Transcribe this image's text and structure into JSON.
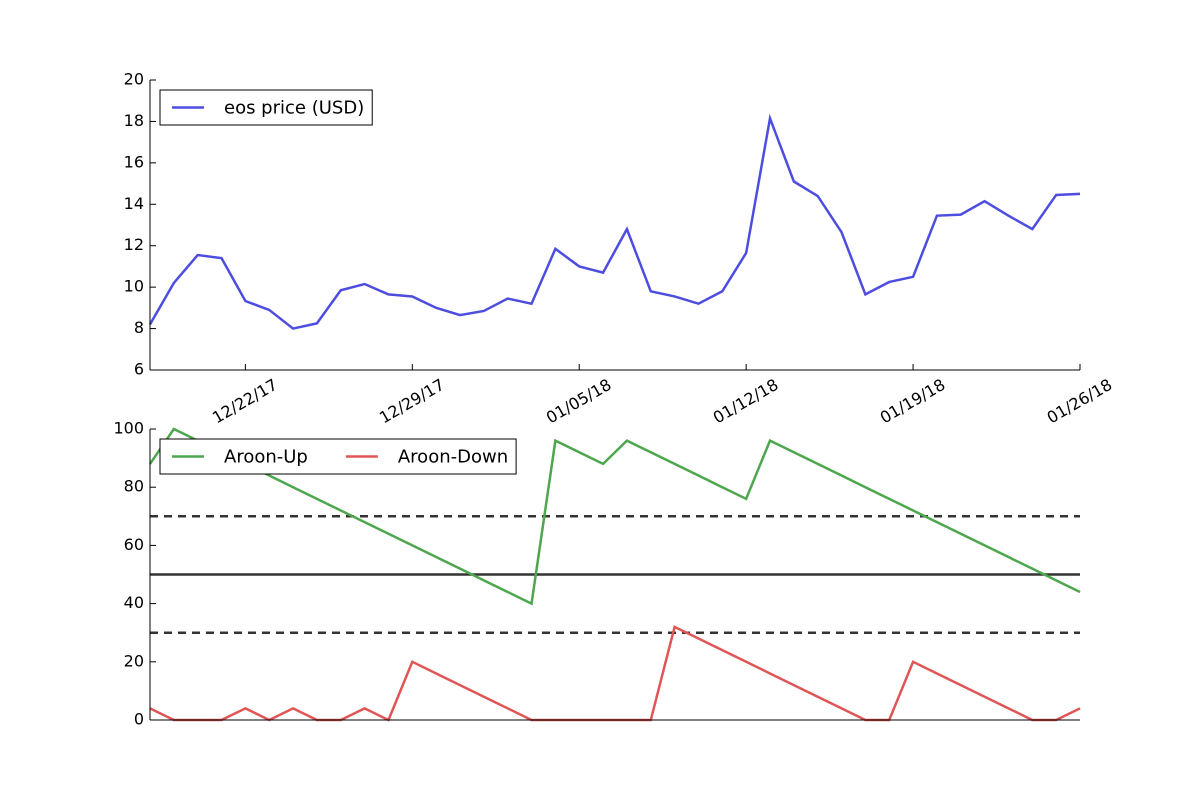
{
  "chart_data": [
    {
      "type": "line",
      "x": [
        "2017-12-18",
        "2017-12-19",
        "2017-12-20",
        "2017-12-21",
        "2017-12-22",
        "2017-12-23",
        "2017-12-24",
        "2017-12-25",
        "2017-12-26",
        "2017-12-27",
        "2017-12-28",
        "2017-12-29",
        "2017-12-30",
        "2017-12-31",
        "2018-01-01",
        "2018-01-02",
        "2018-01-03",
        "2018-01-04",
        "2018-01-05",
        "2018-01-06",
        "2018-01-07",
        "2018-01-08",
        "2018-01-09",
        "2018-01-10",
        "2018-01-11",
        "2018-01-12",
        "2018-01-13",
        "2018-01-14",
        "2018-01-15",
        "2018-01-16",
        "2018-01-17",
        "2018-01-18",
        "2018-01-19",
        "2018-01-20",
        "2018-01-21",
        "2018-01-22",
        "2018-01-23",
        "2018-01-24",
        "2018-01-25",
        "2018-01-26"
      ],
      "series": [
        {
          "name": "eos price (USD)",
          "color": "#4d4de0",
          "values": [
            8.2,
            10.2,
            11.55,
            11.4,
            9.33,
            8.9,
            8.0,
            8.25,
            9.85,
            10.15,
            9.65,
            9.55,
            9.0,
            8.65,
            8.85,
            9.45,
            9.2,
            11.85,
            11.0,
            10.7,
            12.8,
            9.8,
            9.55,
            9.2,
            9.8,
            11.65,
            18.15,
            15.1,
            14.4,
            12.65,
            9.65,
            10.25,
            10.5,
            13.45,
            13.5,
            14.15,
            13.45,
            12.8,
            14.45,
            14.5
          ]
        }
      ],
      "xlim": [
        "2017-12-18",
        "2018-01-26"
      ],
      "xticks": [
        {
          "value": "2017-12-22",
          "label": "12/22/17"
        },
        {
          "value": "2017-12-29",
          "label": "12/29/17"
        },
        {
          "value": "2018-01-05",
          "label": "01/05/18"
        },
        {
          "value": "2018-01-12",
          "label": "01/12/18"
        },
        {
          "value": "2018-01-19",
          "label": "01/19/18"
        },
        {
          "value": "2018-01-26",
          "label": "01/26/18"
        }
      ],
      "ylim": [
        6,
        20
      ],
      "yticks": [
        6,
        8,
        10,
        12,
        14,
        16,
        18,
        20
      ],
      "legend": "upper left"
    },
    {
      "type": "line",
      "x": [
        "2017-12-18",
        "2017-12-19",
        "2017-12-20",
        "2017-12-21",
        "2017-12-22",
        "2017-12-23",
        "2017-12-24",
        "2017-12-25",
        "2017-12-26",
        "2017-12-27",
        "2017-12-28",
        "2017-12-29",
        "2017-12-30",
        "2017-12-31",
        "2018-01-01",
        "2018-01-02",
        "2018-01-03",
        "2018-01-04",
        "2018-01-05",
        "2018-01-06",
        "2018-01-07",
        "2018-01-08",
        "2018-01-09",
        "2018-01-10",
        "2018-01-11",
        "2018-01-12",
        "2018-01-13",
        "2018-01-14",
        "2018-01-15",
        "2018-01-16",
        "2018-01-17",
        "2018-01-18",
        "2018-01-19",
        "2018-01-20",
        "2018-01-21",
        "2018-01-22",
        "2018-01-23",
        "2018-01-24",
        "2018-01-25",
        "2018-01-26"
      ],
      "series": [
        {
          "name": "Aroon-Up",
          "color": "#4ea64e",
          "values": [
            88,
            100,
            96,
            92,
            88,
            84,
            80,
            76,
            72,
            68,
            64,
            60,
            56,
            52,
            48,
            44,
            40,
            96,
            92,
            88,
            96,
            92,
            88,
            84,
            80,
            76,
            96,
            92,
            88,
            84,
            80,
            76,
            72,
            68,
            64,
            60,
            56,
            52,
            48,
            44
          ]
        },
        {
          "name": "Aroon-Down",
          "color": "#e05656",
          "values": [
            4,
            0,
            0,
            0,
            4,
            0,
            4,
            0,
            0,
            4,
            0,
            20,
            16,
            12,
            8,
            4,
            0,
            0,
            0,
            0,
            0,
            0,
            32,
            28,
            24,
            20,
            16,
            12,
            8,
            4,
            0,
            0,
            20,
            16,
            12,
            8,
            4,
            0,
            0,
            4
          ]
        }
      ],
      "hlines": [
        {
          "value": 70,
          "style": "dashed",
          "color": "#333333"
        },
        {
          "value": 50,
          "style": "solid",
          "color": "#333333"
        },
        {
          "value": 30,
          "style": "dashed",
          "color": "#333333"
        }
      ],
      "xlim": [
        "2017-12-18",
        "2018-01-26"
      ],
      "ylim": [
        0,
        100
      ],
      "yticks": [
        0,
        20,
        40,
        60,
        80,
        100
      ],
      "legend": "upper left"
    }
  ]
}
